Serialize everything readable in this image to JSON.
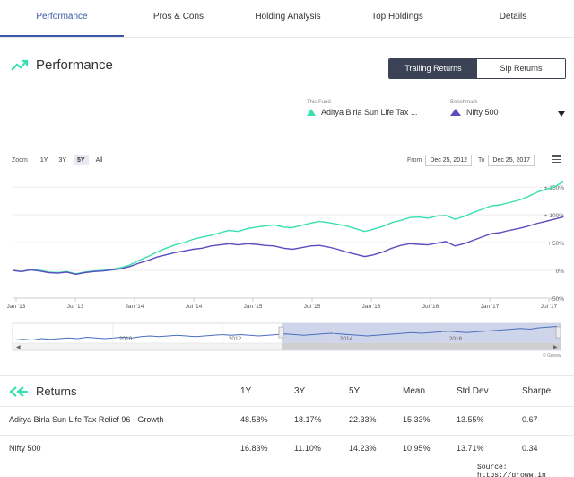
{
  "tabs": [
    {
      "label": "Performance",
      "active": true
    },
    {
      "label": "Pros & Cons",
      "active": false
    },
    {
      "label": "Holding Analysis",
      "active": false
    },
    {
      "label": "Top Holdings",
      "active": false
    },
    {
      "label": "Details",
      "active": false
    }
  ],
  "header": {
    "title": "Performance",
    "icon": "trending-up-icon",
    "toggle": {
      "active": "Trailing Returns",
      "inactive": "Sip Returns"
    }
  },
  "fund": {
    "caption": "This Fund",
    "name": "Aditya Birla Sun Life Tax ...",
    "color": "#36e0b0"
  },
  "benchmark": {
    "caption": "Benchmark",
    "name": "Nifty 500",
    "color": "#5a4dbf"
  },
  "zoom": {
    "label": "Zoom",
    "options": [
      "1Y",
      "3Y",
      "5Y",
      "All"
    ],
    "active": "5Y"
  },
  "range": {
    "from_label": "From",
    "from": "Dec 25, 2012",
    "to_label": "To",
    "to": "Dec 25, 2017"
  },
  "navigator": {
    "years": [
      "2010",
      "2012",
      "2014",
      "2016"
    ],
    "credit": "© Groww"
  },
  "chart_data": {
    "type": "line",
    "x_ticks": [
      "Jan '13",
      "Jul '13",
      "Jan '14",
      "Jul '14",
      "Jan '15",
      "Jul '15",
      "Jan '16",
      "Jul '16",
      "Jan '17",
      "Jul '17"
    ],
    "y_ticks": [
      "+ 150%",
      "+ 100%",
      "+ 50%",
      "0%",
      "-50%"
    ],
    "ylim": [
      -50,
      160
    ],
    "series": [
      {
        "name": "Aditya Birla Sun Life Tax ...",
        "color": "#36e0b0",
        "values": [
          0,
          -2,
          2,
          0,
          -3,
          -4,
          -2,
          -6,
          -3,
          -1,
          0,
          2,
          5,
          10,
          18,
          25,
          33,
          40,
          46,
          50,
          56,
          60,
          63,
          68,
          72,
          70,
          75,
          78,
          80,
          82,
          78,
          77,
          81,
          85,
          88,
          86,
          83,
          80,
          75,
          70,
          74,
          79,
          86,
          90,
          95,
          96,
          94,
          98,
          99,
          92,
          97,
          104,
          110,
          116,
          118,
          122,
          126,
          132,
          140,
          146,
          150,
          160
        ]
      },
      {
        "name": "Nifty 500",
        "color": "#5a4dbf",
        "values": [
          0,
          -2,
          1,
          -1,
          -4,
          -5,
          -3,
          -7,
          -4,
          -2,
          -1,
          1,
          3,
          7,
          13,
          18,
          24,
          28,
          32,
          35,
          38,
          40,
          44,
          46,
          48,
          46,
          48,
          47,
          45,
          44,
          40,
          38,
          41,
          44,
          45,
          42,
          38,
          33,
          29,
          25,
          28,
          33,
          40,
          45,
          48,
          47,
          46,
          49,
          52,
          44,
          48,
          54,
          60,
          66,
          68,
          72,
          75,
          79,
          84,
          88,
          92,
          96
        ]
      }
    ],
    "grid": true,
    "legend": "none"
  },
  "returns": {
    "title": "Returns",
    "icon": "double-chevron-left-icon",
    "columns": [
      "1Y",
      "3Y",
      "5Y",
      "Mean",
      "Std Dev",
      "Sharpe"
    ],
    "rows": [
      {
        "name": "Aditya Birla Sun Life Tax Relief 96 - Growth",
        "values": [
          "48.58%",
          "18.17%",
          "22.33%",
          "15.33%",
          "13.55%",
          "0.67"
        ]
      },
      {
        "name": "Nifty 500",
        "values": [
          "16.83%",
          "11.10%",
          "14.23%",
          "10.95%",
          "13.71%",
          "0.34"
        ]
      }
    ]
  },
  "source": "Source: https://groww.in"
}
